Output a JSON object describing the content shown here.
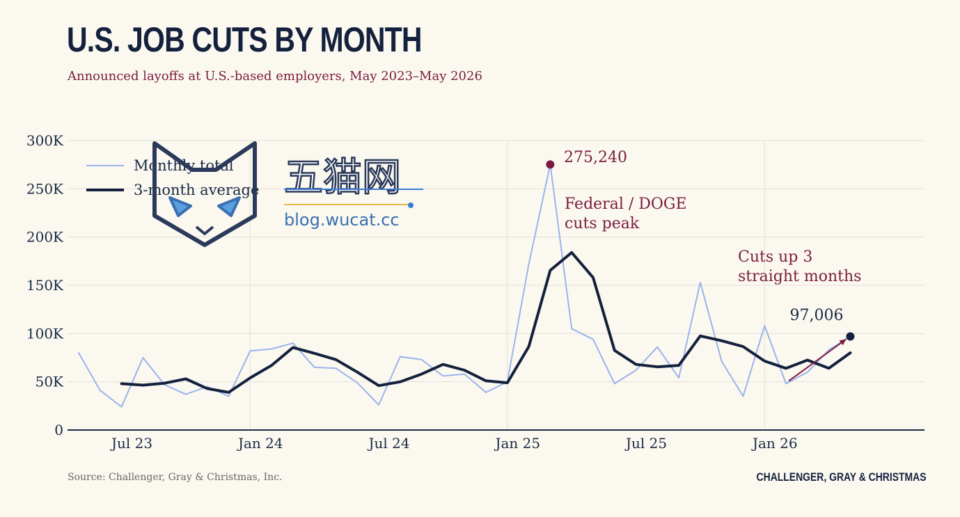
{
  "header": {
    "title": "U.S. JOB CUTS BY MONTH",
    "subtitle": "Announced layoffs at U.S.-based employers, May 2023–May 2026"
  },
  "footer": {
    "source": "Source: Challenger, Gray & Christmas, Inc.",
    "brand": "CHALLENGER, GRAY & CHRISTMAS"
  },
  "watermark": {
    "cjk_text": "五猫网",
    "url_text": "blog.wucat.cc"
  },
  "colors": {
    "monthly": "#9bb3ec",
    "average": "#14213d",
    "accent": "#7a1c3e",
    "grid": "#e2e0d8",
    "axis": "#1a2a44"
  },
  "chart_data": {
    "type": "line",
    "x": [
      "2023-05",
      "2023-06",
      "2023-07",
      "2023-08",
      "2023-09",
      "2023-10",
      "2023-11",
      "2023-12",
      "2024-01",
      "2024-02",
      "2024-03",
      "2024-04",
      "2024-05",
      "2024-06",
      "2024-07",
      "2024-08",
      "2024-09",
      "2024-10",
      "2024-11",
      "2024-12",
      "2025-01",
      "2025-02",
      "2025-03",
      "2025-04",
      "2025-05",
      "2025-06",
      "2025-07",
      "2025-08",
      "2025-09",
      "2025-10",
      "2025-11",
      "2025-12",
      "2026-01",
      "2026-02",
      "2026-03",
      "2026-04",
      "2026-05"
    ],
    "series": [
      {
        "name": "Monthly total",
        "values": [
          80000,
          41000,
          24000,
          75000,
          47000,
          37000,
          45000,
          35000,
          82000,
          84000,
          90000,
          65000,
          64000,
          49000,
          26000,
          76000,
          73000,
          56000,
          58000,
          39000,
          50000,
          172000,
          275240,
          105000,
          94000,
          48000,
          62000,
          86000,
          54000,
          153000,
          71000,
          35000,
          108000,
          48000,
          60000,
          83000,
          97006
        ]
      },
      {
        "name": "3-month average",
        "values": [
          null,
          null,
          48000,
          46500,
          48500,
          53000,
          43000,
          39000,
          54000,
          67000,
          85500,
          79500,
          73000,
          60000,
          46000,
          50000,
          58000,
          68000,
          62000,
          51000,
          49000,
          86500,
          165500,
          184000,
          158000,
          82500,
          68000,
          65500,
          67000,
          97500,
          92500,
          86500,
          71500,
          64000,
          72500,
          64000,
          80000
        ]
      }
    ],
    "x_tick_labels": [
      "Jul 23",
      "Jan 24",
      "Jul 24",
      "Jan 25",
      "Jul 25",
      "Jan 26"
    ],
    "y_tick_labels": [
      "0",
      "50K",
      "100K",
      "150K",
      "200K",
      "250K",
      "300K"
    ],
    "ylim": [
      0,
      300000
    ],
    "grid": true,
    "legend_position": "top-left",
    "annotations": [
      {
        "value_label": "275,240",
        "text": [
          "Federal / DOGE",
          "cuts peak"
        ]
      },
      {
        "text": [
          "Cuts up 3",
          "straight months"
        ]
      },
      {
        "value_label": "97,006"
      }
    ]
  }
}
